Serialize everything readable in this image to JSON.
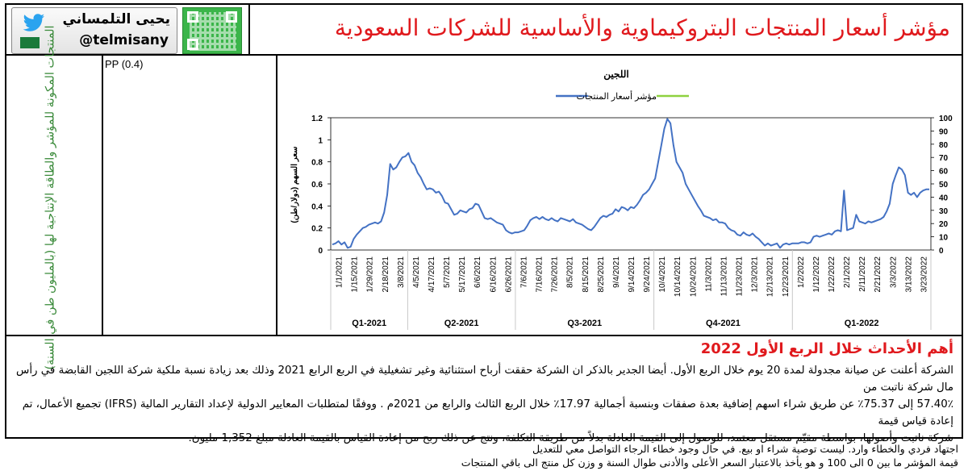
{
  "header": {
    "title": "مؤشر أسعار المنتجات البتروكيماوية والأساسية للشركات السعودية",
    "author": "يحيى التلمساني",
    "handle": "@telmisany"
  },
  "side_label": "المنتجات المكونة للمؤشر والطاقة الإنتاجية لها (بالمليون طن في السنة)",
  "products": "PP (0.4)",
  "chart_data": {
    "type": "line",
    "title": "اللجين",
    "legend": [
      "مؤشر أسعار المنتجات",
      ""
    ],
    "legend_placement": "top-center",
    "ylabel": "سعر السهم (دولار/طن)",
    "ylim": [
      0,
      1.2
    ],
    "y_ticks": [
      "0",
      "0.2",
      "0.4",
      "0.6",
      "0.8",
      "1",
      "1.2"
    ],
    "y2lim": [
      0,
      100
    ],
    "y2_ticks": [
      "0",
      "10",
      "20",
      "30",
      "40",
      "50",
      "60",
      "70",
      "80",
      "90",
      "100"
    ],
    "x_ticks": [
      "1/1/2021",
      "1/15/2021",
      "1/29/2021",
      "2/18/2021",
      "3/8/2021",
      "4/5/2021",
      "4/17/2021",
      "5/7/2021",
      "5/17/2021",
      "6/6/2021",
      "6/16/2021",
      "6/26/2021",
      "7/6/2021",
      "7/16/2021",
      "7/26/2021",
      "8/5/2021",
      "8/15/2021",
      "8/25/2021",
      "9/4/2021",
      "9/14/2021",
      "9/24/2021",
      "10/4/2021",
      "10/14/2021",
      "10/24/2021",
      "11/3/2021",
      "11/13/2021",
      "11/23/2021",
      "12/3/2021",
      "12/13/2021",
      "12/23/2021",
      "1/2/2022",
      "1/12/2022",
      "1/22/2022",
      "2/1/2022",
      "2/11/2022",
      "2/21/2022",
      "3/3/2022",
      "3/13/2022",
      "3/23/2022"
    ],
    "quarters": [
      "Q1-2021",
      "Q2-2021",
      "Q3-2021",
      "Q4-2021",
      "Q1-2022"
    ],
    "series": [
      {
        "name": "مؤشر أسعار المنتجات",
        "color": "#4472c4",
        "values": [
          0.05,
          0.06,
          0.08,
          0.05,
          0.07,
          0.02,
          0.03,
          0.1,
          0.14,
          0.17,
          0.2,
          0.21,
          0.23,
          0.24,
          0.25,
          0.24,
          0.26,
          0.34,
          0.5,
          0.78,
          0.73,
          0.75,
          0.8,
          0.84,
          0.85,
          0.88,
          0.8,
          0.77,
          0.7,
          0.66,
          0.6,
          0.55,
          0.56,
          0.55,
          0.52,
          0.53,
          0.49,
          0.43,
          0.42,
          0.37,
          0.32,
          0.33,
          0.36,
          0.35,
          0.34,
          0.37,
          0.38,
          0.42,
          0.41,
          0.35,
          0.29,
          0.28,
          0.29,
          0.27,
          0.25,
          0.24,
          0.23,
          0.18,
          0.16,
          0.15,
          0.16,
          0.16,
          0.17,
          0.18,
          0.22,
          0.27,
          0.29,
          0.3,
          0.28,
          0.3,
          0.28,
          0.27,
          0.29,
          0.27,
          0.26,
          0.29,
          0.28,
          0.27,
          0.26,
          0.28,
          0.25,
          0.24,
          0.23,
          0.21,
          0.19,
          0.18,
          0.21,
          0.25,
          0.29,
          0.31,
          0.3,
          0.32,
          0.33,
          0.37,
          0.35,
          0.39,
          0.38,
          0.36,
          0.39,
          0.38,
          0.41,
          0.45,
          0.5,
          0.52,
          0.55,
          0.6,
          0.65,
          0.8,
          0.95,
          1.1,
          1.19,
          1.15,
          0.95,
          0.8,
          0.75,
          0.7,
          0.6,
          0.55,
          0.5,
          0.45,
          0.4,
          0.36,
          0.31,
          0.3,
          0.29,
          0.27,
          0.28,
          0.25,
          0.25,
          0.24,
          0.2,
          0.18,
          0.17,
          0.14,
          0.13,
          0.16,
          0.14,
          0.13,
          0.15,
          0.12,
          0.1,
          0.07,
          0.04,
          0.06,
          0.04,
          0.05,
          0.06,
          0.02,
          0.05,
          0.06,
          0.05,
          0.06,
          0.06,
          0.06,
          0.07,
          0.07,
          0.06,
          0.07,
          0.12,
          0.13,
          0.12,
          0.13,
          0.14,
          0.15,
          0.14,
          0.17,
          0.18,
          0.17,
          0.54,
          0.18,
          0.19,
          0.2,
          0.32,
          0.26,
          0.25,
          0.24,
          0.26,
          0.25,
          0.26,
          0.27,
          0.28,
          0.3,
          0.35,
          0.42,
          0.6,
          0.68,
          0.75,
          0.73,
          0.68,
          0.52,
          0.5,
          0.52,
          0.48,
          0.52,
          0.54,
          0.55,
          0.55
        ]
      },
      {
        "name": "",
        "color": "#8ed13f",
        "values": []
      }
    ]
  },
  "events": {
    "title": "أهم الأحداث خلال الربع الأول 2022",
    "lines": [
      "الشركة أعلنت عن صيانة مجدولة لمدة 20 يوم خلال الربع الأول. أيضا الجدير بالذكر ان الشركة حققت أرباح استثنائية وغير تشغيلية في الربع الرابع 2021 وذلك بعد زيادة نسبة ملكية شركة اللجين القابضة في رأس مال شركة ناتبت من",
      "57.40٪ إلى 75.37٪ عن طريق شراء اسهم إضافية بعدة صفقات وبنسبة أجمالية 17.97٪ خلال الربع الثالث والرابع من 2021م . ووفقًا لمتطلبات المعايير الدولية لإعداد التقارير المالية (IFRS) تجميع الأعمال، تم إعادة قياس قيمة",
      "شركة ناتبت وأصولها، بواسطة مقيّم مستقل معتمد، للوصول إلى القيمة العادلة بدلاً من طريقة التكلفة، ونتج عن ذلك ربح من إعادة القياس بالقيمة العادلة مبلغ 1,352 مليون."
    ]
  },
  "footer": {
    "disclaimer": "اجتهاد فردي والخطاء وارد. ليست توصية شراء او بيع. في حال وجود خطاء الرجاء التواصل معي للتعديل",
    "note": "قيمة المؤشر ما بين 0 الى 100 و هو يأخذ بالاعتبار السعر الأعلى والأدنى طوال السنة و وزن كل منتج الى باقي المنتجات"
  }
}
